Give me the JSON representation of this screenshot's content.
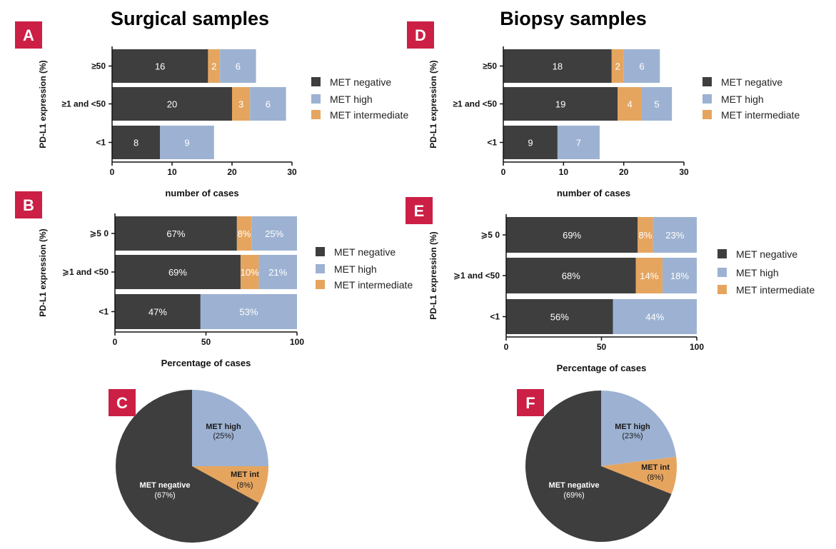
{
  "headings": {
    "left": "Surgical samples",
    "right": "Biopsy samples"
  },
  "colors": {
    "met_negative": "#3e3e3e",
    "met_high": "#9db2d2",
    "met_intermediate": "#e6a55f",
    "badge": "#cc1f45"
  },
  "legend_labels": {
    "met_negative": "MET negative",
    "met_high": "MET high",
    "met_intermediate": "MET intermediate"
  },
  "chart_data": [
    {
      "panel": "A",
      "type": "bar",
      "orientation": "horizontal-stacked",
      "ylabel": "PD-L1 expression (%)",
      "xlabel": "number of cases",
      "xlim": [
        0,
        30
      ],
      "xticks": [
        "0",
        "10",
        "20",
        "30"
      ],
      "categories": [
        "≥50",
        "≥1 and <50",
        "<1"
      ],
      "series": [
        {
          "name": "MET negative",
          "key": "met_negative",
          "values": [
            16,
            20,
            8
          ],
          "labels": [
            "16",
            "20",
            "8"
          ]
        },
        {
          "name": "MET intermediate",
          "key": "met_intermediate",
          "values": [
            2,
            3,
            0
          ],
          "labels": [
            "2",
            "3",
            ""
          ]
        },
        {
          "name": "MET high",
          "key": "met_high",
          "values": [
            6,
            6,
            9
          ],
          "labels": [
            "6",
            "6",
            "9"
          ]
        }
      ],
      "legend": [
        "MET negative",
        "MET high",
        "MET intermediate"
      ]
    },
    {
      "panel": "B",
      "type": "bar",
      "orientation": "horizontal-stacked",
      "ylabel": "PD-L1 expression (%)",
      "xlabel": "Percentage of cases",
      "xlim": [
        0,
        100
      ],
      "xticks": [
        "0",
        "50",
        "100"
      ],
      "categories": [
        "⩾5 0",
        "⩾1 and <50",
        "<1"
      ],
      "series": [
        {
          "name": "MET negative",
          "key": "met_negative",
          "values": [
            67,
            69,
            47
          ],
          "labels": [
            "67%",
            "69%",
            "47%"
          ]
        },
        {
          "name": "MET intermediate",
          "key": "met_intermediate",
          "values": [
            8,
            10,
            0
          ],
          "labels": [
            "8%",
            "10%",
            ""
          ]
        },
        {
          "name": "MET high",
          "key": "met_high",
          "values": [
            25,
            21,
            53
          ],
          "labels": [
            "25%",
            "21%",
            "53%"
          ]
        }
      ],
      "legend": [
        "MET negative",
        "MET high",
        "MET intermediate"
      ]
    },
    {
      "panel": "C",
      "type": "pie",
      "slices": [
        {
          "name": "MET high",
          "short": "MET high",
          "key": "met_high",
          "value": 25,
          "pct_label": "(25%)"
        },
        {
          "name": "MET intermediate",
          "short": "MET int",
          "key": "met_intermediate",
          "value": 8,
          "pct_label": "(8%)"
        },
        {
          "name": "MET negative",
          "short": "MET negative",
          "key": "met_negative",
          "value": 67,
          "pct_label": "(67%)"
        }
      ]
    },
    {
      "panel": "D",
      "type": "bar",
      "orientation": "horizontal-stacked",
      "ylabel": "PD-L1 expression (%)",
      "xlabel": "number of cases",
      "xlim": [
        0,
        30
      ],
      "xticks": [
        "0",
        "10",
        "20",
        "30"
      ],
      "categories": [
        "≥50",
        "≥1 and <50",
        "<1"
      ],
      "series": [
        {
          "name": "MET negative",
          "key": "met_negative",
          "values": [
            18,
            19,
            9
          ],
          "labels": [
            "18",
            "19",
            "9"
          ]
        },
        {
          "name": "MET intermediate",
          "key": "met_intermediate",
          "values": [
            2,
            4,
            0
          ],
          "labels": [
            "2",
            "4",
            ""
          ]
        },
        {
          "name": "MET high",
          "key": "met_high",
          "values": [
            6,
            5,
            7
          ],
          "labels": [
            "6",
            "5",
            "7"
          ]
        }
      ],
      "legend": [
        "MET negative",
        "MET high",
        "MET intermediate"
      ]
    },
    {
      "panel": "E",
      "type": "bar",
      "orientation": "horizontal-stacked",
      "ylabel": "PD-L1 expression (%)",
      "xlabel": "Percentage of cases",
      "xlim": [
        0,
        100
      ],
      "xticks": [
        "0",
        "50",
        "100"
      ],
      "categories": [
        "⩾5 0",
        "⩾1 and <50",
        "<1"
      ],
      "series": [
        {
          "name": "MET negative",
          "key": "met_negative",
          "values": [
            69,
            68,
            56
          ],
          "labels": [
            "69%",
            "68%",
            "56%"
          ]
        },
        {
          "name": "MET intermediate",
          "key": "met_intermediate",
          "values": [
            8,
            14,
            0
          ],
          "labels": [
            "8%",
            "14%",
            ""
          ]
        },
        {
          "name": "MET high",
          "key": "met_high",
          "values": [
            23,
            18,
            44
          ],
          "labels": [
            "23%",
            "18%",
            "44%"
          ]
        }
      ],
      "legend": [
        "MET negative",
        "MET high",
        "MET intermediate"
      ]
    },
    {
      "panel": "F",
      "type": "pie",
      "slices": [
        {
          "name": "MET high",
          "short": "MET high",
          "key": "met_high",
          "value": 23,
          "pct_label": "(23%)"
        },
        {
          "name": "MET intermediate",
          "short": "MET int",
          "key": "met_intermediate",
          "value": 8,
          "pct_label": "(8%)"
        },
        {
          "name": "MET negative",
          "short": "MET negative",
          "key": "met_negative",
          "value": 69,
          "pct_label": "(69%)"
        }
      ]
    }
  ]
}
